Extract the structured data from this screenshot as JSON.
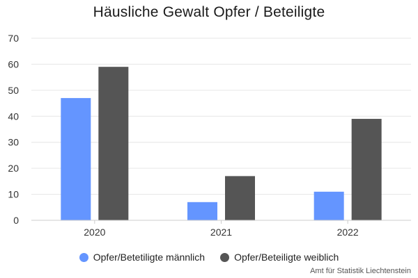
{
  "chart_data": {
    "type": "bar",
    "title": "Häusliche Gewalt Opfer / Beteiligte",
    "categories": [
      "2020",
      "2021",
      "2022"
    ],
    "series": [
      {
        "name": "Opfer/Betetiligte männlich",
        "values": [
          47,
          7,
          11
        ],
        "color": "#6495ff"
      },
      {
        "name": "Opfer/Beteiligte weiblich",
        "values": [
          59,
          17,
          39
        ],
        "color": "#555555"
      }
    ],
    "ylim": [
      0,
      70
    ],
    "yticks": [
      0,
      10,
      20,
      30,
      40,
      50,
      60,
      70
    ],
    "grid": true,
    "legend_position": "bottom-center",
    "credit": "Amt für Statistik Liechtenstein"
  }
}
